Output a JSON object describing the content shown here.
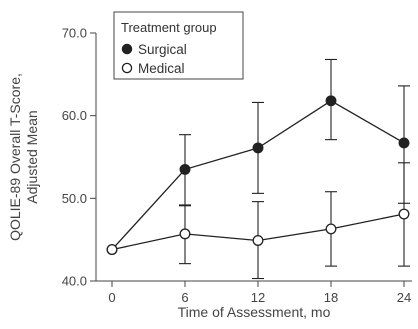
{
  "chart_data": {
    "type": "line",
    "xlabel": "Time of Assessment, mo",
    "ylabel_lines": [
      "QOLIE-89 Overall T-Score,",
      "Adjusted Mean"
    ],
    "x": [
      0,
      6,
      12,
      18,
      24
    ],
    "x_tick_labels": [
      "0",
      "6",
      "12",
      "18",
      "24"
    ],
    "ylim": [
      40.0,
      70.0
    ],
    "y_ticks": [
      40.0,
      50.0,
      60.0,
      70.0
    ],
    "y_tick_labels": [
      "40.0",
      "50.0",
      "60.0",
      "70.0"
    ],
    "legend": {
      "title": "Treatment group",
      "position": "top-left"
    },
    "series": [
      {
        "name": "Surgical",
        "marker": "filled-circle",
        "color": "#222222",
        "values": [
          43.8,
          53.5,
          56.1,
          61.8,
          56.7
        ],
        "err_low": [
          null,
          49.2,
          50.6,
          57.1,
          49.4
        ],
        "err_high": [
          null,
          57.7,
          61.6,
          66.8,
          63.6
        ]
      },
      {
        "name": "Medical",
        "marker": "open-circle",
        "color": "#222222",
        "values": [
          43.8,
          45.7,
          44.9,
          46.3,
          48.1
        ],
        "err_low": [
          null,
          42.1,
          40.3,
          41.8,
          41.8
        ],
        "err_high": [
          null,
          49.1,
          49.6,
          50.8,
          54.3
        ]
      }
    ]
  }
}
